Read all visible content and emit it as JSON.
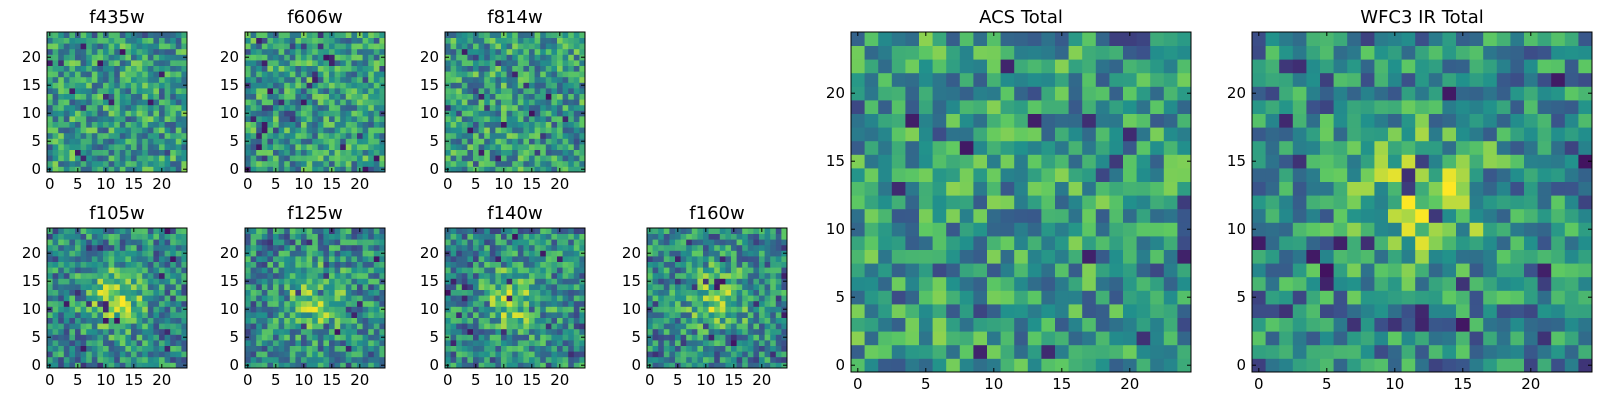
{
  "chart_data": [
    {
      "type": "heatmap",
      "title": "f435w",
      "x_ticks": [
        "0",
        "5",
        "10",
        "15",
        "20"
      ],
      "y_ticks": [
        "0",
        "5",
        "10",
        "15",
        "20"
      ],
      "xlim": [
        -0.5,
        24.5
      ],
      "ylim": [
        -0.5,
        24.5
      ],
      "grid_size": 25,
      "colormap": "viridis",
      "feature": "noise"
    },
    {
      "type": "heatmap",
      "title": "f606w",
      "x_ticks": [
        "0",
        "5",
        "10",
        "15",
        "20"
      ],
      "y_ticks": [
        "0",
        "5",
        "10",
        "15",
        "20"
      ],
      "xlim": [
        -0.5,
        24.5
      ],
      "ylim": [
        -0.5,
        24.5
      ],
      "grid_size": 25,
      "colormap": "viridis",
      "feature": "noise"
    },
    {
      "type": "heatmap",
      "title": "f814w",
      "x_ticks": [
        "0",
        "5",
        "10",
        "15",
        "20"
      ],
      "y_ticks": [
        "0",
        "5",
        "10",
        "15",
        "20"
      ],
      "xlim": [
        -0.5,
        24.5
      ],
      "ylim": [
        -0.5,
        24.5
      ],
      "grid_size": 25,
      "colormap": "viridis",
      "feature": "noise"
    },
    {
      "type": "heatmap",
      "title": "f105w",
      "x_ticks": [
        "0",
        "5",
        "10",
        "15",
        "20"
      ],
      "y_ticks": [
        "0",
        "5",
        "10",
        "15",
        "20"
      ],
      "xlim": [
        -0.5,
        24.5
      ],
      "ylim": [
        -0.5,
        24.5
      ],
      "grid_size": 25,
      "colormap": "viridis",
      "feature": "central source"
    },
    {
      "type": "heatmap",
      "title": "f125w",
      "x_ticks": [
        "0",
        "5",
        "10",
        "15",
        "20"
      ],
      "y_ticks": [
        "0",
        "5",
        "10",
        "15",
        "20"
      ],
      "xlim": [
        -0.5,
        24.5
      ],
      "ylim": [
        -0.5,
        24.5
      ],
      "grid_size": 25,
      "colormap": "viridis",
      "feature": "central source"
    },
    {
      "type": "heatmap",
      "title": "f140w",
      "x_ticks": [
        "0",
        "5",
        "10",
        "15",
        "20"
      ],
      "y_ticks": [
        "0",
        "5",
        "10",
        "15",
        "20"
      ],
      "xlim": [
        -0.5,
        24.5
      ],
      "ylim": [
        -0.5,
        24.5
      ],
      "grid_size": 25,
      "colormap": "viridis",
      "feature": "central source"
    },
    {
      "type": "heatmap",
      "title": "f160w",
      "x_ticks": [
        "0",
        "5",
        "10",
        "15",
        "20"
      ],
      "y_ticks": [
        "0",
        "5",
        "10",
        "15",
        "20"
      ],
      "xlim": [
        -0.5,
        24.5
      ],
      "ylim": [
        -0.5,
        24.5
      ],
      "grid_size": 25,
      "colormap": "viridis",
      "feature": "central source"
    },
    {
      "type": "heatmap",
      "title": "ACS Total",
      "x_ticks": [
        "0",
        "5",
        "10",
        "15",
        "20"
      ],
      "y_ticks": [
        "0",
        "5",
        "10",
        "15",
        "20"
      ],
      "xlim": [
        -0.5,
        24.5
      ],
      "ylim": [
        -0.5,
        24.5
      ],
      "grid_size": 25,
      "colormap": "viridis",
      "feature": "noise"
    },
    {
      "type": "heatmap",
      "title": "WFC3 IR Total",
      "x_ticks": [
        "0",
        "5",
        "10",
        "15",
        "20"
      ],
      "y_ticks": [
        "0",
        "5",
        "10",
        "15",
        "20"
      ],
      "xlim": [
        -0.5,
        24.5
      ],
      "ylim": [
        -0.5,
        24.5
      ],
      "grid_size": 25,
      "colormap": "viridis",
      "feature": "central source"
    }
  ]
}
